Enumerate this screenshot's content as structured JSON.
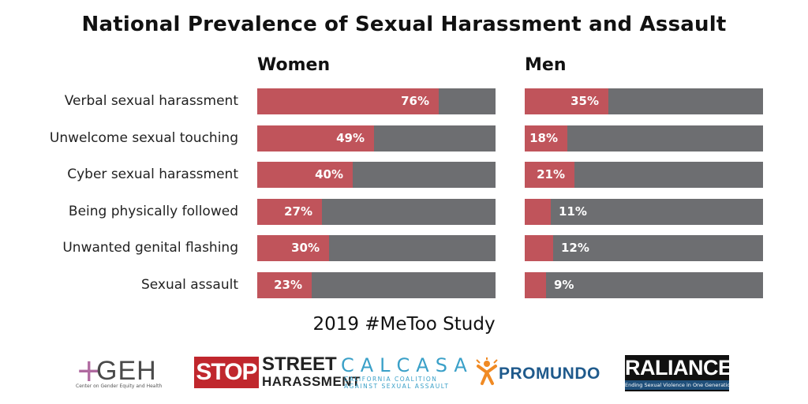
{
  "title": "National Prevalence of Sexual Harassment and Assault",
  "study": "2019 #MeToo Study",
  "colors": {
    "fill": "#c0545b",
    "background_bar": "#6d6e71"
  },
  "chart_data": [
    {
      "type": "bar",
      "title": "Women",
      "categories": [
        "Verbal sexual harassment",
        "Unwelcome sexual touching",
        "Cyber sexual harassment",
        "Being physically followed",
        "Unwanted genital flashing",
        "Sexual assault"
      ],
      "values": [
        76,
        49,
        40,
        27,
        30,
        23
      ],
      "value_labels": [
        "76%",
        "49%",
        "40%",
        "27%",
        "30%",
        "23%"
      ],
      "ylim": [
        0,
        100
      ]
    },
    {
      "type": "bar",
      "title": "Men",
      "categories": [
        "Verbal sexual harassment",
        "Unwelcome sexual touching",
        "Cyber sexual harassment",
        "Being physically followed",
        "Unwanted genital flashing",
        "Sexual assault"
      ],
      "values": [
        35,
        18,
        21,
        11,
        12,
        9
      ],
      "value_labels": [
        "35%",
        "18%",
        "21%",
        "11%",
        "12%",
        "9%"
      ],
      "ylim": [
        0,
        100
      ]
    }
  ],
  "logos": {
    "geh": {
      "name": "GEH",
      "sub": "Center on Gender Equity and Health"
    },
    "ssh": {
      "stop": "STOP",
      "street": "STREET",
      "harassment": "HARASSMENT"
    },
    "calcasa": {
      "name": "CALCASA",
      "sub1": "CALIFORNIA COALITION",
      "sub2": "AGAINST SEXUAL ASSAULT"
    },
    "promundo": {
      "name": "PROMUNDO"
    },
    "raliance": {
      "name": "RALIANCE",
      "sub": "Ending Sexual Violence in One Generation"
    }
  }
}
